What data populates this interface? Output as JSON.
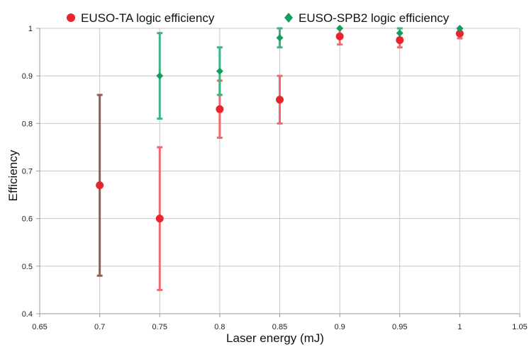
{
  "chart_data": {
    "type": "scatter",
    "title": "",
    "xlabel": "Laser energy (mJ)",
    "ylabel": "Efficiency",
    "xlim": [
      0.65,
      1.05
    ],
    "ylim": [
      0.4,
      1.0
    ],
    "xticks": [
      0.65,
      0.7,
      0.75,
      0.8,
      0.85,
      0.9,
      0.95,
      1.0,
      1.05
    ],
    "xtick_labels": [
      "0.65",
      "0.7",
      "0.75",
      "0.8",
      "0.85",
      "0.9",
      "0.95",
      "1",
      "1.05"
    ],
    "yticks": [
      0.4,
      0.5,
      0.6,
      0.7,
      0.8,
      0.9,
      1.0
    ],
    "ytick_labels": [
      "0.4",
      "0.5",
      "0.6",
      "0.7",
      "0.8",
      "0.9",
      "1"
    ],
    "grid": true,
    "legend_position": "top",
    "series": [
      {
        "name": "EUSO-TA logic efficiency",
        "marker": "circle",
        "color": "#e8252f",
        "error_color": "#ee6a72",
        "points": [
          {
            "x": 0.7,
            "y": 0.67,
            "y_low": 0.48,
            "y_high": 0.86,
            "error_color": "#9c5b4a"
          },
          {
            "x": 0.75,
            "y": 0.6,
            "y_low": 0.45,
            "y_high": 0.75
          },
          {
            "x": 0.8,
            "y": 0.83,
            "y_low": 0.77,
            "y_high": 0.89
          },
          {
            "x": 0.85,
            "y": 0.85,
            "y_low": 0.8,
            "y_high": 0.9
          },
          {
            "x": 0.9,
            "y": 0.983,
            "y_low": 0.966,
            "y_high": 1.0
          },
          {
            "x": 0.95,
            "y": 0.975,
            "y_low": 0.96,
            "y_high": 0.99
          },
          {
            "x": 1.0,
            "y": 0.989,
            "y_low": 0.979,
            "y_high": 0.999
          }
        ]
      },
      {
        "name": "EUSO-SPB2 logic efficiency",
        "marker": "diamond",
        "color": "#119e5e",
        "error_color": "#3bb583",
        "points": [
          {
            "x": 0.75,
            "y": 0.9,
            "y_low": 0.81,
            "y_high": 0.99
          },
          {
            "x": 0.8,
            "y": 0.91,
            "y_low": 0.86,
            "y_high": 0.96
          },
          {
            "x": 0.85,
            "y": 0.98,
            "y_low": 0.96,
            "y_high": 1.0
          },
          {
            "x": 0.9,
            "y": 1.0,
            "y_low": 1.0,
            "y_high": 1.0
          },
          {
            "x": 0.95,
            "y": 0.99,
            "y_low": 0.98,
            "y_high": 1.0
          },
          {
            "x": 1.0,
            "y": 1.0,
            "y_low": 1.0,
            "y_high": 1.0
          }
        ]
      }
    ]
  },
  "colors": {
    "grid": "#c8c8c8",
    "axis": "#9a9a9a"
  }
}
